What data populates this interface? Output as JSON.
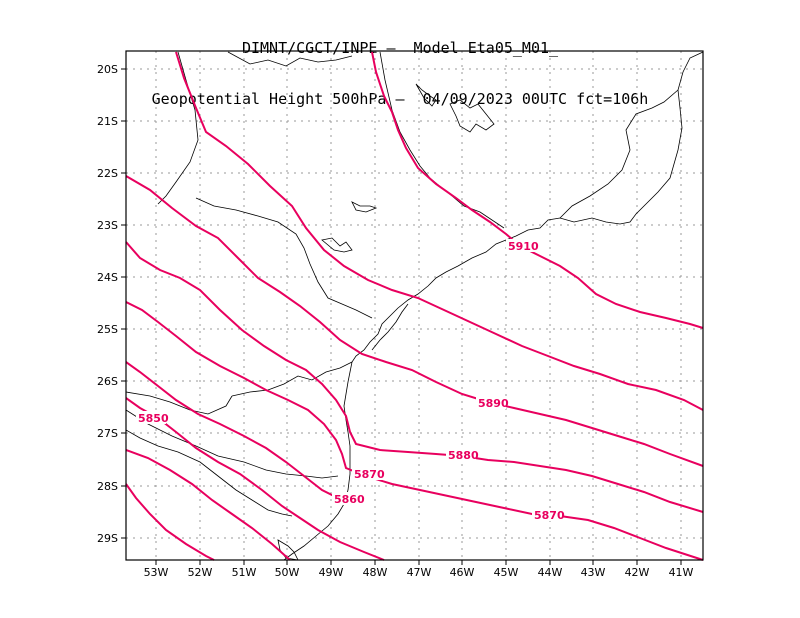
{
  "title": {
    "line1": "DIMNT/CGCT/INPE –  Model Eta05_M01_",
    "line2": "Geopotential Height 500hPa –  04/09/2023 00UTC fct=106h"
  },
  "axes": {
    "lat_labels": [
      "20S",
      "21S",
      "22S",
      "23S",
      "24S",
      "25S",
      "26S",
      "27S",
      "28S",
      "29S"
    ],
    "lon_labels": [
      "53W",
      "52W",
      "51W",
      "50W",
      "49W",
      "48W",
      "47W",
      "46W",
      "45W",
      "44W",
      "43W",
      "42W",
      "41W"
    ]
  },
  "contour_labels": [
    "5910",
    "5890",
    "5880",
    "5870",
    "5870",
    "5860",
    "5850"
  ],
  "colors": {
    "contour": "#e8005e",
    "label": "#e8005e",
    "coast": "#000000",
    "grid": "#808080"
  }
}
